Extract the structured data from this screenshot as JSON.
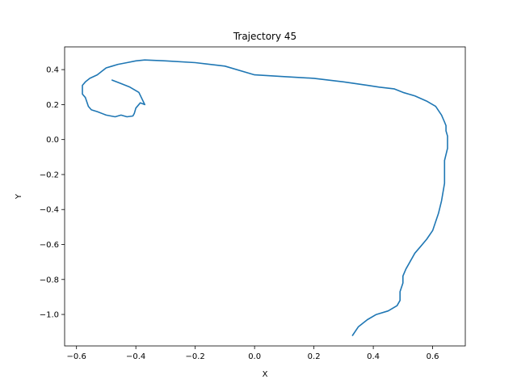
{
  "chart_data": {
    "type": "line",
    "title": "Trajectory 45",
    "xlabel": "X",
    "ylabel": "Y",
    "xlim": [
      -0.64,
      0.71
    ],
    "ylim": [
      -1.18,
      0.53
    ],
    "xticks": [
      -0.6,
      -0.4,
      -0.2,
      0.0,
      0.2,
      0.4,
      0.6
    ],
    "xtick_labels": [
      "−0.6",
      "−0.4",
      "−0.2",
      "0.0",
      "0.2",
      "0.4",
      "0.6"
    ],
    "yticks": [
      -1.0,
      -0.8,
      -0.6,
      -0.4,
      -0.2,
      0.0,
      0.2,
      0.4
    ],
    "ytick_labels": [
      "−1.0",
      "−0.8",
      "−0.6",
      "−0.4",
      "−0.2",
      "0.0",
      "0.2",
      "0.4"
    ],
    "grid": false,
    "color": "#1f77b4",
    "series": [
      {
        "x": [
          0.33,
          0.35,
          0.38,
          0.41,
          0.45,
          0.48,
          0.49,
          0.49,
          0.5,
          0.5,
          0.51,
          0.52,
          0.54,
          0.56,
          0.58,
          0.6,
          0.62,
          0.63,
          0.64,
          0.64,
          0.65,
          0.65,
          0.645,
          0.645,
          0.64,
          0.63,
          0.61,
          0.58,
          0.54,
          0.5,
          0.47,
          0.42,
          0.38,
          0.3,
          0.2,
          0.1,
          0.0,
          -0.1,
          -0.2,
          -0.3,
          -0.37,
          -0.4,
          -0.43,
          -0.46,
          -0.48,
          -0.5,
          -0.53,
          -0.555,
          -0.57,
          -0.58,
          -0.58,
          -0.57,
          -0.56,
          -0.55,
          -0.53,
          -0.5,
          -0.47,
          -0.45,
          -0.43,
          -0.41,
          -0.405,
          -0.4,
          -0.385,
          -0.37,
          -0.39,
          -0.42,
          -0.45,
          -0.48
        ],
        "y": [
          -1.12,
          -1.07,
          -1.03,
          -1.0,
          -0.98,
          -0.95,
          -0.92,
          -0.87,
          -0.82,
          -0.78,
          -0.74,
          -0.71,
          -0.65,
          -0.61,
          -0.57,
          -0.52,
          -0.42,
          -0.35,
          -0.25,
          -0.12,
          -0.05,
          0.02,
          0.05,
          0.08,
          0.1,
          0.14,
          0.19,
          0.22,
          0.25,
          0.27,
          0.29,
          0.3,
          0.31,
          0.33,
          0.35,
          0.36,
          0.37,
          0.42,
          0.44,
          0.45,
          0.455,
          0.45,
          0.44,
          0.43,
          0.42,
          0.41,
          0.37,
          0.35,
          0.33,
          0.31,
          0.26,
          0.24,
          0.19,
          0.17,
          0.16,
          0.14,
          0.13,
          0.14,
          0.13,
          0.135,
          0.15,
          0.18,
          0.21,
          0.2,
          0.27,
          0.3,
          0.32,
          0.34
        ]
      }
    ]
  }
}
